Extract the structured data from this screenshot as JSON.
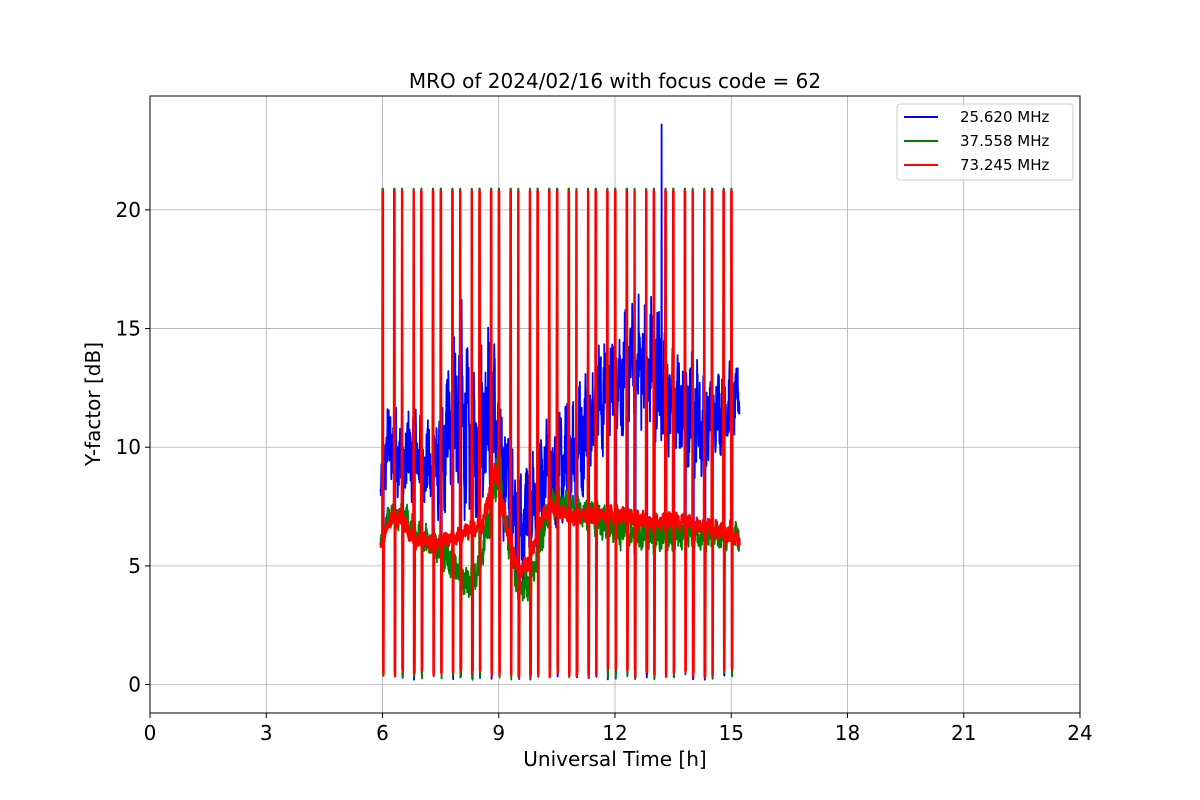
{
  "chart_data": {
    "type": "line",
    "title": "MRO of 2024/02/16 with focus code = 62",
    "xlabel": "Universal Time [h]",
    "ylabel": "Y-factor [dB]",
    "xlim": [
      0,
      24
    ],
    "ylim": [
      -1.2,
      24.8
    ],
    "xticks": [
      0,
      3,
      6,
      9,
      12,
      15,
      18,
      21,
      24
    ],
    "yticks": [
      0,
      5,
      10,
      15,
      20
    ],
    "grid": true,
    "legend_position": "top-right",
    "colors": {
      "series_0": "#0000ff",
      "series_1": "#008000",
      "series_2": "#ff0000"
    },
    "pulse_times": [
      6.0,
      6.3,
      6.5,
      6.8,
      7.0,
      7.3,
      7.5,
      7.8,
      8.0,
      8.3,
      8.5,
      8.8,
      9.0,
      9.3,
      9.5,
      9.8,
      10.0,
      10.3,
      10.5,
      10.8,
      11.0,
      11.3,
      11.5,
      11.8,
      12.0,
      12.3,
      12.5,
      12.8,
      13.0,
      13.3,
      13.5,
      13.8,
      14.0,
      14.3,
      14.5,
      14.8,
      15.0
    ],
    "series": [
      {
        "name": "25.620 MHz",
        "color": "#0000ff",
        "peak": 20.9,
        "floor": 0.2,
        "x": [
          5.95,
          6.1,
          6.3,
          6.6,
          6.9,
          7.2,
          7.5,
          7.8,
          8.0,
          8.2,
          8.4,
          8.6,
          8.8,
          9.0,
          9.2,
          9.4,
          9.6,
          9.8,
          10.0,
          10.2,
          10.5,
          10.8,
          11.0,
          11.3,
          11.6,
          11.9,
          12.2,
          12.5,
          12.8,
          13.1,
          13.4,
          13.7,
          14.0,
          14.3,
          14.6,
          14.9,
          15.2
        ],
        "y": [
          8.0,
          10.0,
          10.0,
          9.5,
          10.0,
          9.0,
          9.5,
          11.0,
          12.5,
          10.0,
          9.5,
          11.5,
          12.0,
          10.0,
          8.5,
          7.5,
          6.5,
          7.5,
          7.5,
          8.5,
          9.0,
          9.5,
          10.0,
          11.0,
          12.0,
          12.5,
          13.0,
          13.5,
          13.5,
          13.0,
          12.0,
          11.5,
          11.5,
          11.0,
          11.5,
          12.0,
          12.0
        ],
        "amp": [
          0.6,
          1.5,
          1.5,
          1.5,
          1.5,
          1.5,
          2.0,
          2.5,
          3.5,
          3.0,
          2.5,
          3.0,
          3.0,
          2.5,
          2.0,
          2.0,
          2.0,
          2.0,
          2.0,
          2.0,
          2.0,
          2.0,
          2.0,
          2.0,
          2.0,
          2.0,
          2.0,
          2.0,
          2.5,
          2.5,
          2.0,
          2.0,
          2.0,
          2.0,
          1.5,
          1.5,
          1.0
        ]
      },
      {
        "name": "37.558 MHz",
        "color": "#008000",
        "peak": 20.9,
        "floor": 0.2,
        "x": [
          5.95,
          6.2,
          6.6,
          7.0,
          7.4,
          7.8,
          8.2,
          8.5,
          8.8,
          9.0,
          9.2,
          9.5,
          9.8,
          10.0,
          10.3,
          10.6,
          11.0,
          11.5,
          12.0,
          12.5,
          13.0,
          13.5,
          14.0,
          14.5,
          15.0,
          15.2
        ],
        "y": [
          6.0,
          7.2,
          7.0,
          6.2,
          5.8,
          5.2,
          4.2,
          5.0,
          7.5,
          9.8,
          6.5,
          4.0,
          4.2,
          5.5,
          7.5,
          7.8,
          7.3,
          7.0,
          6.5,
          6.3,
          6.3,
          6.2,
          6.3,
          6.2,
          6.3,
          6.2
        ],
        "amp": [
          0.3,
          0.5,
          0.5,
          0.6,
          0.6,
          0.6,
          0.6,
          0.6,
          0.8,
          1.0,
          0.8,
          0.6,
          0.6,
          0.7,
          0.6,
          0.5,
          0.5,
          0.6,
          0.6,
          0.6,
          0.6,
          0.6,
          0.5,
          0.5,
          0.5,
          0.5
        ]
      },
      {
        "name": "73.245 MHz",
        "color": "#ff0000",
        "peak": 20.8,
        "floor": 0.3,
        "x": [
          5.95,
          6.2,
          6.5,
          6.8,
          7.1,
          7.4,
          7.7,
          8.0,
          8.3,
          8.6,
          8.9,
          9.1,
          9.3,
          9.5,
          9.7,
          9.9,
          10.1,
          10.4,
          10.8,
          11.2,
          11.6,
          12.0,
          12.5,
          13.0,
          13.5,
          14.0,
          14.5,
          15.0,
          15.2
        ],
        "y": [
          5.8,
          7.0,
          7.0,
          6.0,
          6.1,
          6.0,
          6.1,
          6.3,
          6.6,
          6.8,
          9.2,
          7.5,
          6.0,
          4.8,
          5.0,
          5.8,
          7.0,
          7.5,
          7.1,
          7.1,
          7.1,
          7.2,
          7.0,
          6.8,
          6.9,
          6.8,
          6.6,
          6.2,
          6.2
        ],
        "amp": [
          0.2,
          0.3,
          0.3,
          0.3,
          0.3,
          0.3,
          0.3,
          0.3,
          0.3,
          0.3,
          0.4,
          0.4,
          0.4,
          0.3,
          0.3,
          0.3,
          0.3,
          0.3,
          0.3,
          0.3,
          0.3,
          0.3,
          0.3,
          0.3,
          0.3,
          0.3,
          0.3,
          0.3,
          0.3
        ]
      }
    ],
    "spike": {
      "series": "25.620 MHz",
      "x": 13.2,
      "y": 23.6
    }
  }
}
